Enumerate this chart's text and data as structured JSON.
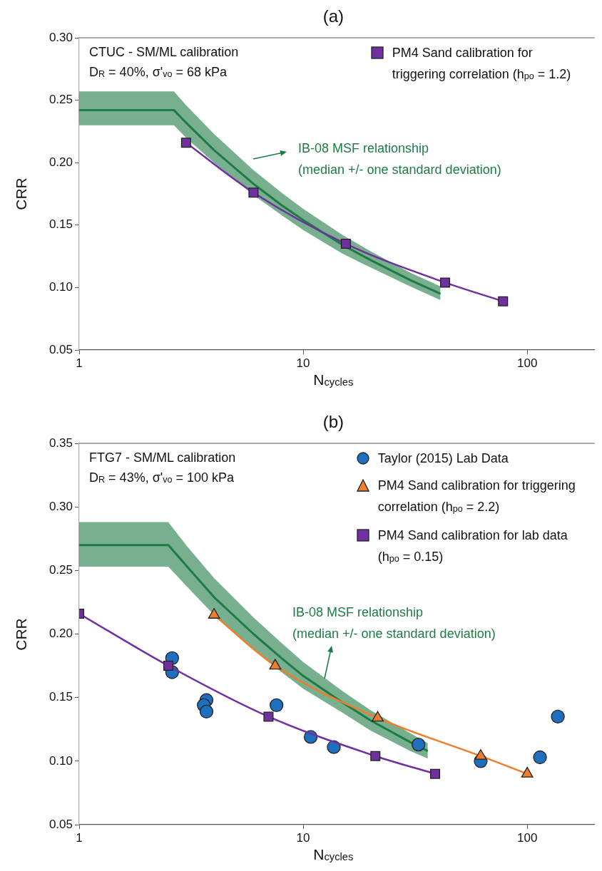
{
  "chart_data": [
    {
      "type": "line",
      "title": "(a)",
      "xlabel": "N$_{cycles}$",
      "ylabel": "CRR",
      "log": "x",
      "xlim": [
        1,
        200
      ],
      "xticks": [
        1,
        10,
        100
      ],
      "ylim": [
        0.05,
        0.3
      ],
      "yticks": [
        {
          "value": 0.05,
          "label": "0.05"
        },
        {
          "value": 0.1,
          "label": "0.10"
        },
        {
          "value": 0.15,
          "label": "0.15"
        },
        {
          "value": 0.2,
          "label": "0.20"
        },
        {
          "value": 0.25,
          "label": "0.25"
        },
        {
          "value": 0.3,
          "label": "0.30"
        }
      ],
      "grid": false,
      "legend": "top right",
      "annotations": [
        "CTUC - SM/ML calibration",
        "D$_{R}$ = 40%,  σ'$_{vo}$ = 68 kPa"
      ],
      "series": [
        {
          "type": "line",
          "name": "IB-08 MSF relationship (median +/- one standard deviation)",
          "color": "#1e7b45",
          "marker": "none",
          "x": [
            1,
            2.65,
            3,
            4,
            6,
            8,
            10,
            15,
            20,
            30,
            41
          ],
          "values": [
            0.242,
            0.242,
            0.232,
            0.21,
            0.183,
            0.166,
            0.154,
            0.134,
            0.122,
            0.106,
            0.095
          ],
          "lower": [
            0.23,
            0.23,
            0.22,
            0.2,
            0.174,
            0.158,
            0.146,
            0.127,
            0.116,
            0.101,
            0.09
          ],
          "upper": [
            0.257,
            0.257,
            0.246,
            0.223,
            0.194,
            0.176,
            0.163,
            0.142,
            0.129,
            0.112,
            0.101
          ]
        },
        {
          "type": "line",
          "name": "PM4 Sand calibration for triggering correlation (h$_{po}$ = 1.2)",
          "color": "#7030a0",
          "marker": "square",
          "x": [
            3,
            6,
            15.5,
            43,
            78
          ],
          "values": [
            0.216,
            0.176,
            0.135,
            0.104,
            0.089
          ]
        }
      ]
    },
    {
      "type": "line",
      "title": "(b)",
      "xlabel": "N$_{cycles}$",
      "ylabel": "CRR",
      "log": "x",
      "xlim": [
        1,
        200
      ],
      "xticks": [
        1,
        10,
        100
      ],
      "ylim": [
        0.05,
        0.35
      ],
      "yticks": [
        {
          "value": 0.05,
          "label": "0.05"
        },
        {
          "value": 0.1,
          "label": "0.10"
        },
        {
          "value": 0.15,
          "label": "0.15"
        },
        {
          "value": 0.2,
          "label": "0.20"
        },
        {
          "value": 0.25,
          "label": "0.25"
        },
        {
          "value": 0.3,
          "label": "0.30"
        },
        {
          "value": 0.35,
          "label": "0.35"
        }
      ],
      "grid": false,
      "legend": "top right",
      "annotations": [
        "FTG7 - SM/ML calibration",
        "D$_{R}$ = 43%, σ'$_{vo}$ = 100 kPa"
      ],
      "series": [
        {
          "type": "line",
          "name": "IB-08 MSF relationship (median +/- one standard deviation)",
          "color": "#1e7b45",
          "marker": "none",
          "x": [
            1,
            2.5,
            3,
            4,
            6,
            8,
            10,
            15,
            20,
            30,
            36
          ],
          "values": [
            0.27,
            0.27,
            0.254,
            0.229,
            0.2,
            0.181,
            0.167,
            0.146,
            0.132,
            0.115,
            0.108
          ],
          "lower": [
            0.253,
            0.253,
            0.238,
            0.215,
            0.188,
            0.17,
            0.157,
            0.138,
            0.124,
            0.108,
            0.102
          ],
          "upper": [
            0.288,
            0.288,
            0.27,
            0.244,
            0.213,
            0.193,
            0.178,
            0.155,
            0.14,
            0.122,
            0.114
          ]
        },
        {
          "type": "scatter",
          "name": "Taylor (2015) Lab Data",
          "color": "#1f6fbf",
          "marker": "circle",
          "x": [
            2.6,
            2.6,
            3.7,
            3.6,
            3.7,
            7.6,
            10.8,
            13.7,
            32.7,
            62,
            114,
            137
          ],
          "values": [
            0.181,
            0.17,
            0.148,
            0.144,
            0.139,
            0.144,
            0.119,
            0.111,
            0.113,
            0.1,
            0.103,
            0.135
          ]
        },
        {
          "type": "line",
          "name": "PM4 Sand calibration for triggering correlation (h$_{po}$ = 2.2)",
          "color": "#ee7d2c",
          "marker": "triangle",
          "x": [
            4,
            7.5,
            21.5,
            62,
            100
          ],
          "values": [
            0.215,
            0.175,
            0.134,
            0.104,
            0.09
          ]
        },
        {
          "type": "line",
          "name": "PM4 Sand calibration for lab data (h$_{po}$ = 0.15)",
          "color": "#7030a0",
          "marker": "square",
          "x": [
            1,
            2.5,
            7,
            21,
            38.8
          ],
          "values": [
            0.216,
            0.175,
            0.135,
            0.104,
            0.09
          ]
        }
      ]
    }
  ]
}
